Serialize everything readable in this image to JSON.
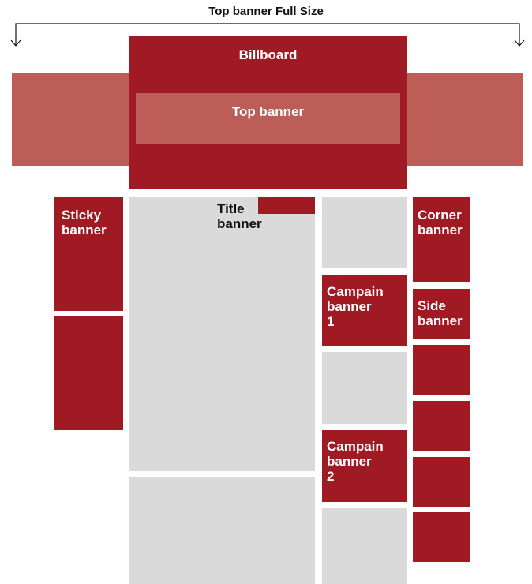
{
  "header": {
    "title": "Top banner Full Size"
  },
  "billboard": {
    "label": "Billboard"
  },
  "top_banner": {
    "label": "Top banner"
  },
  "sticky_banner": {
    "label": "Sticky\nbanner"
  },
  "title_banner": {
    "label": "Title\nbanner"
  },
  "corner_banner": {
    "label": "Corner\nbanner"
  },
  "campaign_banner_1": {
    "label": "Campain\nbanner\n1"
  },
  "side_banner": {
    "label": "Side\nbanner"
  },
  "campaign_banner_2": {
    "label": "Campain\nbanner\n2"
  },
  "colors": {
    "dark_red": "#a01a24",
    "light_red": "#bd5d57",
    "grey": "#dadada"
  }
}
